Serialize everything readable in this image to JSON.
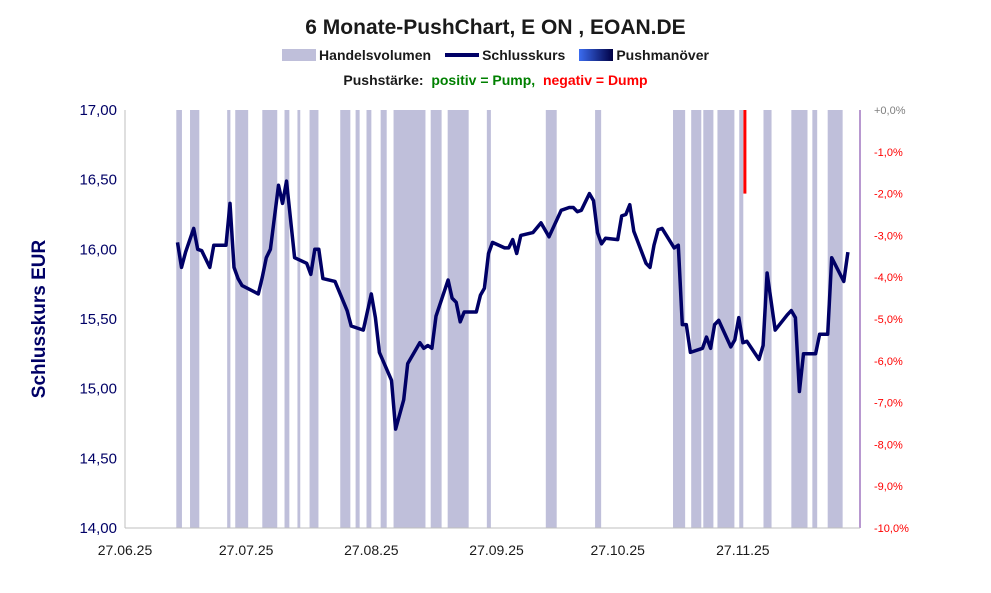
{
  "chart_data": {
    "type": "line",
    "title": "6 Monate-PushChart, E ON , EOAN.DE",
    "legend": {
      "volume": "Handelsvolumen",
      "close": "Schlusskurs",
      "push": "Pushmanöver"
    },
    "push_note": {
      "label": "Pushstärke:",
      "positive": "positiv = Pump,",
      "negative": "negativ = Dump"
    },
    "ylabel": "Schlusskurs EUR",
    "ylim": [
      14,
      17
    ],
    "y_ticks": [
      "14,00",
      "14,50",
      "15,00",
      "15,50",
      "16,00",
      "16,50",
      "17,00"
    ],
    "y2lim": [
      -10,
      0
    ],
    "y2_ticks": [
      "+0,0%",
      "-1,0%",
      "-2,0%",
      "-3,0%",
      "-4,0%",
      "-5,0%",
      "-6,0%",
      "-7,0%",
      "-8,0%",
      "-9,0%",
      "-10,0%"
    ],
    "x_unit": "days since 27.06.25",
    "xlim": [
      0,
      182
    ],
    "x_ticks": [
      {
        "day": 0,
        "label": "27.06.25"
      },
      {
        "day": 30,
        "label": "27.07.25"
      },
      {
        "day": 61,
        "label": "27.08.25"
      },
      {
        "day": 92,
        "label": "27.09.25"
      },
      {
        "day": 122,
        "label": "27.10.25"
      },
      {
        "day": 153,
        "label": "27.11.25"
      }
    ],
    "close_days": [
      13,
      14,
      15,
      17,
      18,
      19,
      21,
      22,
      25,
      26,
      27,
      28,
      29,
      33,
      34,
      35,
      36,
      38,
      39,
      40,
      42,
      45,
      46,
      47,
      48,
      49,
      52,
      55,
      56,
      59,
      61,
      62,
      63,
      66,
      67,
      69,
      70,
      73,
      74,
      75,
      76,
      77,
      80,
      81,
      82,
      83,
      84,
      87,
      88,
      89,
      90,
      91,
      94,
      95,
      96,
      97,
      98,
      101,
      103,
      105,
      108,
      110,
      111,
      112,
      113,
      115,
      116,
      117,
      118,
      119,
      122,
      123,
      124,
      125,
      126,
      129,
      130,
      131,
      132,
      133,
      136,
      137,
      138,
      139,
      140,
      143,
      144,
      145,
      146,
      147,
      150,
      151,
      152,
      153,
      154,
      157,
      158,
      159,
      161,
      164,
      165,
      166,
      167,
      168,
      171,
      172,
      174,
      175,
      178,
      179
    ],
    "close_values": [
      16.05,
      15.87,
      15.98,
      16.15,
      16.0,
      15.99,
      15.87,
      16.03,
      16.03,
      16.33,
      15.87,
      15.79,
      15.74,
      15.68,
      15.8,
      15.94,
      16.0,
      16.46,
      16.33,
      16.49,
      15.94,
      15.9,
      15.82,
      16.0,
      16.0,
      15.79,
      15.77,
      15.56,
      15.45,
      15.42,
      15.68,
      15.51,
      15.26,
      15.06,
      14.71,
      14.92,
      15.18,
      15.33,
      15.29,
      15.31,
      15.29,
      15.52,
      15.78,
      15.65,
      15.62,
      15.48,
      15.55,
      15.55,
      15.67,
      15.72,
      15.97,
      16.05,
      16.01,
      16.01,
      16.07,
      15.97,
      16.1,
      16.12,
      16.19,
      16.09,
      16.28,
      16.3,
      16.3,
      16.27,
      16.28,
      16.4,
      16.35,
      16.12,
      16.04,
      16.08,
      16.07,
      16.24,
      16.25,
      16.32,
      16.13,
      15.9,
      15.87,
      16.03,
      16.14,
      16.15,
      16.01,
      16.03,
      15.46,
      15.46,
      15.26,
      15.29,
      15.37,
      15.29,
      15.46,
      15.49,
      15.3,
      15.35,
      15.51,
      15.33,
      15.34,
      15.21,
      15.31,
      15.83,
      15.42,
      15.53,
      15.56,
      15.51,
      14.98,
      15.25,
      15.25,
      15.39,
      15.39,
      15.94,
      15.77,
      15.98
    ],
    "volume_high_ranges": [
      [
        12.7,
        14.1
      ],
      [
        16.1,
        18.4
      ],
      [
        25.3,
        26.1
      ],
      [
        27.3,
        30.5
      ],
      [
        34.0,
        37.7
      ],
      [
        39.5,
        40.7
      ],
      [
        42.7,
        43.4
      ],
      [
        45.7,
        47.9
      ],
      [
        53.3,
        55.8
      ],
      [
        57.1,
        58.1
      ],
      [
        59.8,
        61.0
      ],
      [
        63.3,
        64.8
      ],
      [
        66.5,
        74.4
      ],
      [
        75.7,
        78.4
      ],
      [
        79.9,
        85.1
      ],
      [
        89.6,
        90.6
      ],
      [
        104.2,
        106.9
      ],
      [
        116.4,
        117.9
      ],
      [
        135.7,
        138.7
      ],
      [
        140.2,
        142.7
      ],
      [
        143.2,
        145.7
      ],
      [
        146.7,
        150.9
      ],
      [
        152.1,
        153.1
      ],
      [
        158.1,
        160.1
      ],
      [
        165.0,
        169.0
      ],
      [
        170.2,
        171.4
      ],
      [
        174.0,
        177.7
      ]
    ],
    "push": [
      {
        "day": 153.5,
        "value": -2.0
      }
    ],
    "colors": {
      "volume": "#bfbfda",
      "close": "#000066",
      "push": "#ff0000",
      "positive": "#008000",
      "negative": "#ff0000",
      "axis_left": "#000066",
      "axis_right": "#ff0000"
    }
  }
}
